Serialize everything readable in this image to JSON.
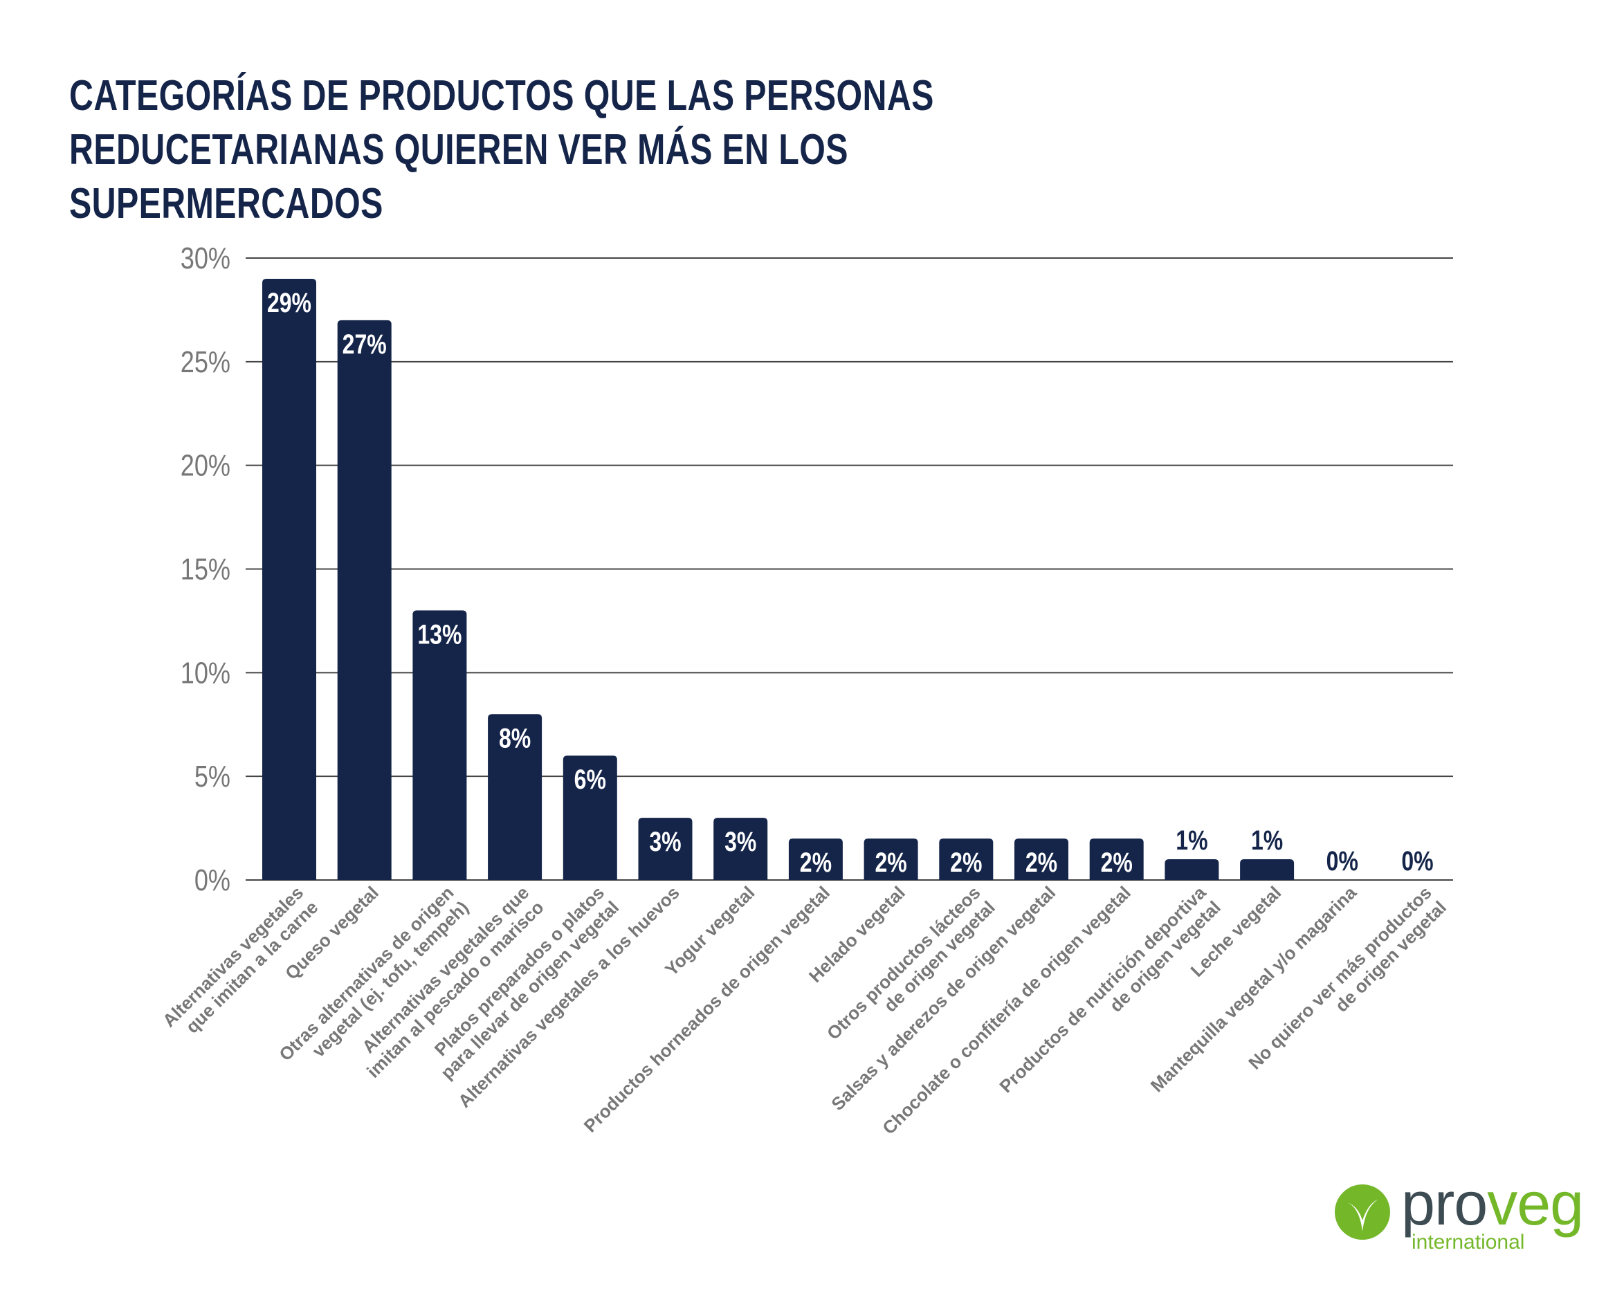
{
  "title": "CATEGORÍAS DE PRODUCTOS QUE LAS PERSONAS REDUCETARIANAS QUIEREN VER MÁS EN LOS SUPERMERCADOS",
  "colors": {
    "bar": "#15254a",
    "grid": "#444444",
    "tick_text": "#777777",
    "label_text": "#777777",
    "logo_green": "#74b82a",
    "logo_gray": "#3d4b52"
  },
  "logo": {
    "word_a": "pro",
    "word_b": "veg",
    "sub": "international"
  },
  "chart_data": {
    "type": "bar",
    "ylim": [
      0,
      30
    ],
    "yticks": [
      0,
      5,
      10,
      15,
      20,
      25,
      30
    ],
    "ytick_labels": [
      "0%",
      "5%",
      "10%",
      "15%",
      "20%",
      "25%",
      "30%"
    ],
    "grid": true,
    "categories": [
      [
        "Alternativas vegetales",
        "que imitan a la carne"
      ],
      [
        "Queso vegetal"
      ],
      [
        "Otras alternativas de origen",
        "vegetal (ej. tofu, tempeh)"
      ],
      [
        "Alternativas vegetales que",
        "imitan al pescado o marisco"
      ],
      [
        "Platos preparados o platos",
        "para llevar de origen vegetal"
      ],
      [
        "Alternativas vegetales a los huevos"
      ],
      [
        "Yogur vegetal"
      ],
      [
        "Productos horneados de origen vegetal"
      ],
      [
        "Helado vegetal"
      ],
      [
        "Otros productos lácteos",
        "de origen vegetal"
      ],
      [
        "Salsas y aderezos de origen vegetal"
      ],
      [
        "Chocolate o confitería  de origen vegetal"
      ],
      [
        "Productos de nutrición deportiva",
        "de origen vegetal"
      ],
      [
        "Leche vegetal"
      ],
      [
        "Mantequilla  vegetal  y/o magarina"
      ],
      [
        "No quiero ver más productos",
        "de origen vegetal"
      ]
    ],
    "values": [
      29,
      27,
      13,
      8,
      6,
      3,
      3,
      2,
      2,
      2,
      2,
      2,
      1,
      1,
      0,
      0
    ],
    "value_labels": [
      "29%",
      "27%",
      "13%",
      "8%",
      "6%",
      "3%",
      "3%",
      "2%",
      "2%",
      "2%",
      "2%",
      "2%",
      "1%",
      "1%",
      "0%",
      "0%"
    ]
  }
}
